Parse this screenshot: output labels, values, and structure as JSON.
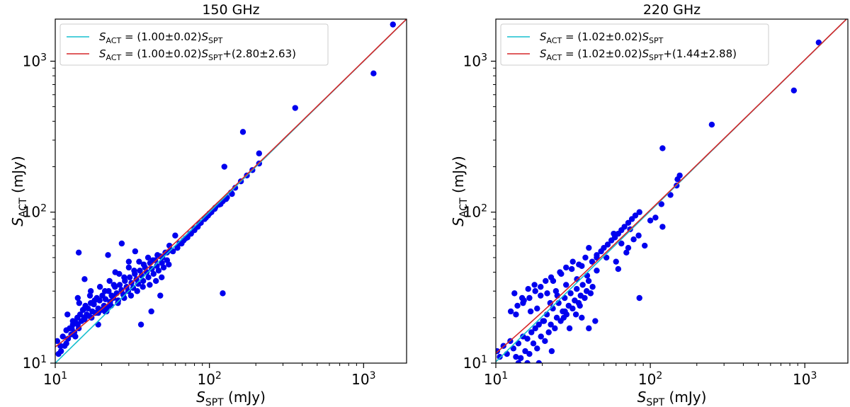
{
  "chart_data": [
    {
      "type": "scatter",
      "title": "150 GHz",
      "xlabel": {
        "symbol": "S",
        "sub": "SPT",
        "unit": " (mJy)"
      },
      "ylabel": {
        "symbol": "S",
        "sub": "ACT",
        "unit": " (mJy)"
      },
      "xscale": "log",
      "yscale": "log",
      "xlim": [
        10,
        1900
      ],
      "ylim": [
        10,
        1900
      ],
      "x_ticks": [
        {
          "value": 10,
          "base": "10",
          "exp": "1"
        },
        {
          "value": 100,
          "base": "10",
          "exp": "2"
        },
        {
          "value": 1000,
          "base": "10",
          "exp": "3"
        }
      ],
      "y_ticks": [
        {
          "value": 10,
          "base": "10",
          "exp": "1"
        },
        {
          "value": 100,
          "base": "10",
          "exp": "2"
        },
        {
          "value": 1000,
          "base": "10",
          "exp": "3"
        }
      ],
      "legend_position": "top-left",
      "colors": {
        "points": "#0000ee",
        "fit_slope": "#17bfcf",
        "fit_offset": "#d62728"
      },
      "series": [
        {
          "name": "data",
          "kind": "points",
          "x": [
            10.3,
            10.5,
            10.9,
            11.2,
            11.5,
            11.8,
            12.1,
            12.4,
            12.7,
            13.0,
            13.3,
            13.6,
            13.9,
            14.2,
            14.5,
            14.8,
            15.1,
            15.4,
            15.7,
            16.0,
            16.3,
            16.6,
            17.0,
            17.4,
            17.8,
            18.2,
            18.6,
            19.0,
            19.4,
            19.8,
            20.2,
            20.7,
            21.2,
            21.7,
            22.2,
            22.7,
            23.2,
            23.8,
            24.4,
            25.0,
            25.6,
            26.2,
            26.9,
            27.6,
            28.3,
            29.0,
            29.7,
            30.4,
            31.2,
            32.0,
            32.8,
            33.6,
            34.5,
            35.4,
            36.3,
            37.2,
            38.2,
            39.2,
            40.2,
            41.2,
            42.3,
            43.4,
            44.5,
            45.6,
            46.8,
            48.0,
            49.2,
            50.5,
            51.8,
            53.1,
            54.5,
            56.0,
            12.0,
            13.0,
            14.3,
            15.5,
            16.8,
            18.0,
            19.5,
            21.0,
            22.5,
            24.0,
            26.0,
            28.0,
            30.0,
            32.5,
            35.0,
            37.5,
            40.0,
            43.0,
            46.0,
            49.5,
            53.0,
            12.8,
            14.0,
            15.5,
            17.2,
            19.0,
            21.0,
            23.0,
            25.5,
            28.0,
            31.0,
            34.0,
            37.0,
            41.0,
            45.0,
            49.0,
            10.8,
            11.8,
            13.5,
            14.0,
            15.5,
            17.0,
            19.0,
            22.0,
            24.5,
            27.0,
            30.0,
            33.0,
            36.0,
            42.0,
            48.0,
            55.0,
            14.2,
            21.5,
            60.0,
            64.0,
            68.0,
            72.0,
            76.0,
            80.0,
            84.0,
            88.0,
            93.0,
            98.0,
            103.0,
            109.0,
            115.0,
            122.0,
            130.0,
            138.0,
            147.0,
            160.0,
            175.0,
            190.0,
            210.0,
            58.0,
            62.0,
            66.0,
            70.0,
            75.0,
            80.0,
            86.0,
            95.0,
            100.0,
            108.0,
            118.0,
            128.0,
            140.0,
            122.0,
            125.0,
            165.0,
            210.0,
            360.0,
            1160.0,
            1550.0
          ],
          "y": [
            14.0,
            11.5,
            12.0,
            15.0,
            13.0,
            16.5,
            14.5,
            17.0,
            15.5,
            18.0,
            16.0,
            18.5,
            20.0,
            17.0,
            21.0,
            19.0,
            22.5,
            20.0,
            24.0,
            21.0,
            23.0,
            20.5,
            25.0,
            22.0,
            24.5,
            21.5,
            27.0,
            23.0,
            26.0,
            22.5,
            28.0,
            24.0,
            26.5,
            23.5,
            30.0,
            25.5,
            28.0,
            27.0,
            32.0,
            29.0,
            26.0,
            33.0,
            30.5,
            28.5,
            35.0,
            32.0,
            30.0,
            37.0,
            34.0,
            31.5,
            39.0,
            36.0,
            33.5,
            41.0,
            38.0,
            35.0,
            43.0,
            40.0,
            37.0,
            46.0,
            42.0,
            39.0,
            48.0,
            44.0,
            41.0,
            51.0,
            46.0,
            43.0,
            54.0,
            48.0,
            45.0,
            56.0,
            21.0,
            19.0,
            25.0,
            23.0,
            28.0,
            26.0,
            32.0,
            30.0,
            35.0,
            33.0,
            39.0,
            37.0,
            43.0,
            41.0,
            47.0,
            45.0,
            50.0,
            48.0,
            52.0,
            50.0,
            54.0,
            17.0,
            18.0,
            19.5,
            20.0,
            21.5,
            22.0,
            24.0,
            25.0,
            27.0,
            28.0,
            30.0,
            32.0,
            33.0,
            35.0,
            37.0,
            13.0,
            13.5,
            15.0,
            27.0,
            36.0,
            30.0,
            18.0,
            52.0,
            40.0,
            62.0,
            47.0,
            55.0,
            18.0,
            22.0,
            28.0,
            60.0,
            54.0,
            22.0,
            70.0,
            62.0,
            65.0,
            68.0,
            72.0,
            76.0,
            80.0,
            85.0,
            90.0,
            95.0,
            100.0,
            107.0,
            112.0,
            118.0,
            125.0,
            135.0,
            145.0,
            160.0,
            175.0,
            190.0,
            210.0,
            55.0,
            58.0,
            62.0,
            67.0,
            72.0,
            78.0,
            84.0,
            92.0,
            98.0,
            105.0,
            113.0,
            122.0,
            132.0,
            29.0,
            200.0,
            340.0,
            245.0,
            490.0,
            830.0,
            1750.0
          ]
        },
        {
          "name": "S_ACT = (1.00±0.02)S_SPT",
          "kind": "line",
          "slope": 1.0,
          "offset": 0
        },
        {
          "name": "S_ACT = (1.00±0.02)S_SPT+(2.80±2.63)",
          "kind": "line",
          "slope": 1.0,
          "offset": 2.8
        }
      ],
      "legend": [
        {
          "lhs": "S",
          "lhs_sub": "ACT",
          "mid": " = (1.00±0.02)",
          "rhs": "S",
          "rhs_sub": "SPT",
          "tail": "",
          "color": "#17bfcf"
        },
        {
          "lhs": "S",
          "lhs_sub": "ACT",
          "mid": " = (1.00±0.02)",
          "rhs": "S",
          "rhs_sub": "SPT",
          "tail": "+(2.80±2.63)",
          "color": "#d62728"
        }
      ]
    },
    {
      "type": "scatter",
      "title": "220 GHz",
      "xlabel": {
        "symbol": "S",
        "sub": "SPT",
        "unit": " (mJy)"
      },
      "ylabel": {
        "symbol": "S",
        "sub": "ACT",
        "unit": " (mJy)"
      },
      "xscale": "log",
      "yscale": "log",
      "xlim": [
        10,
        1900
      ],
      "ylim": [
        10,
        1900
      ],
      "x_ticks": [
        {
          "value": 10,
          "base": "10",
          "exp": "1"
        },
        {
          "value": 100,
          "base": "10",
          "exp": "2"
        },
        {
          "value": 1000,
          "base": "10",
          "exp": "3"
        }
      ],
      "y_ticks": [
        {
          "value": 10,
          "base": "10",
          "exp": "1"
        },
        {
          "value": 100,
          "base": "10",
          "exp": "2"
        },
        {
          "value": 1000,
          "base": "10",
          "exp": "3"
        }
      ],
      "legend_position": "top-left",
      "colors": {
        "points": "#0000ee",
        "fit_slope": "#17bfcf",
        "fit_offset": "#d62728"
      },
      "series": [
        {
          "name": "data",
          "kind": "points",
          "x": [
            10.2,
            10.6,
            11.2,
            11.8,
            12.4,
            13.0,
            13.5,
            14.0,
            14.5,
            15.0,
            15.5,
            16.0,
            16.5,
            17.0,
            17.5,
            18.0,
            18.5,
            19.0,
            19.6,
            20.2,
            20.8,
            21.4,
            22.0,
            22.7,
            23.4,
            24.1,
            24.8,
            25.5,
            26.3,
            27.1,
            27.9,
            28.7,
            29.6,
            30.5,
            31.4,
            32.4,
            33.4,
            34.4,
            35.4,
            36.5,
            37.6,
            38.7,
            39.9,
            41.1,
            42.3,
            13.2,
            14.8,
            16.2,
            17.8,
            19.5,
            21.0,
            22.8,
            24.5,
            26.5,
            28.5,
            31.0,
            33.5,
            36.0,
            39.0,
            42.0,
            45.0,
            13.8,
            15.2,
            16.8,
            18.5,
            20.5,
            22.5,
            25.0,
            27.5,
            30.0,
            33.0,
            36.0,
            40.0,
            44.0,
            12.5,
            13.5,
            15.0,
            16.5,
            18.0,
            19.5,
            21.5,
            23.5,
            26.0,
            28.5,
            31.5,
            34.5,
            38.0,
            14.0,
            16.0,
            19.0,
            23.0,
            28.0,
            35.0,
            40.0,
            45.0,
            48.0,
            50.0,
            53.0,
            56.0,
            59.0,
            62.0,
            65.0,
            68.0,
            72.0,
            76.0,
            80.0,
            85.0,
            45.0,
            52.0,
            58.0,
            65.0,
            72.0,
            78.0,
            84.0,
            60.0,
            70.0,
            74.0,
            62.0,
            92.0,
            100.0,
            108.0,
            118.0,
            120.0,
            135.0,
            148.0,
            150.0,
            155.0,
            85.0,
            120.0,
            250.0,
            850.0,
            1230.0
          ],
          "y": [
            12.0,
            11.0,
            13.0,
            11.5,
            14.0,
            12.5,
            11.0,
            13.5,
            10.8,
            15.0,
            12.0,
            14.5,
            11.5,
            16.0,
            13.5,
            17.0,
            12.5,
            18.0,
            15.0,
            19.0,
            14.0,
            21.0,
            16.0,
            18.0,
            23.0,
            17.0,
            20.0,
            25.0,
            19.0,
            22.0,
            27.0,
            21.0,
            24.0,
            29.0,
            23.0,
            26.0,
            31.0,
            25.0,
            28.0,
            33.0,
            27.0,
            30.0,
            35.0,
            29.0,
            32.0,
            29.0,
            27.0,
            31.0,
            33.0,
            28.0,
            35.0,
            37.0,
            30.0,
            39.0,
            33.0,
            42.0,
            36.0,
            44.0,
            38.0,
            47.0,
            50.0,
            24.0,
            26.0,
            22.0,
            23.0,
            19.0,
            25.0,
            28.0,
            20.0,
            17.0,
            21.0,
            20.0,
            17.0,
            19.0,
            22.0,
            21.0,
            25.0,
            27.0,
            30.0,
            32.0,
            29.0,
            35.0,
            40.0,
            43.0,
            47.0,
            45.0,
            50.0,
            10.0,
            10.0,
            10.0,
            12.0,
            22.0,
            24.0,
            58.0,
            52.0,
            55.0,
            58.0,
            61.0,
            65.0,
            68.0,
            72.0,
            76.0,
            80.0,
            85.0,
            90.0,
            95.0,
            100.0,
            41.0,
            50.0,
            72.0,
            62.0,
            58.0,
            66.0,
            70.0,
            47.0,
            54.0,
            77.0,
            42.0,
            60.0,
            88.0,
            92.0,
            113.0,
            80.0,
            130.0,
            150.0,
            165.0,
            175.0,
            27.0,
            265.0,
            380.0,
            640.0,
            1330.0
          ]
        },
        {
          "name": "S_ACT = (1.02±0.02)S_SPT",
          "kind": "line",
          "slope": 1.02,
          "offset": 0
        },
        {
          "name": "S_ACT = (1.02±0.02)S_SPT+(1.44±2.88)",
          "kind": "line",
          "slope": 1.02,
          "offset": 1.44
        }
      ],
      "legend": [
        {
          "lhs": "S",
          "lhs_sub": "ACT",
          "mid": " = (1.02±0.02)",
          "rhs": "S",
          "rhs_sub": "SPT",
          "tail": "",
          "color": "#17bfcf"
        },
        {
          "lhs": "S",
          "lhs_sub": "ACT",
          "mid": " = (1.02±0.02)",
          "rhs": "S",
          "rhs_sub": "SPT",
          "tail": "+(1.44±2.88)",
          "color": "#d62728"
        }
      ]
    }
  ]
}
